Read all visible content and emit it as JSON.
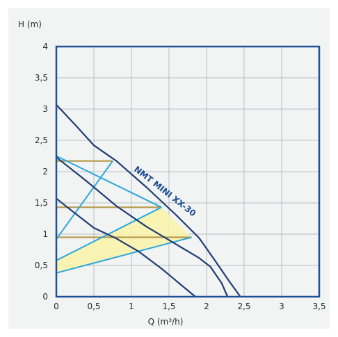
{
  "chart_data": {
    "type": "line",
    "ylabel": "H (m)",
    "xlabel": "Q (m³/h)",
    "xlim": [
      0,
      3.5
    ],
    "ylim": [
      0,
      4
    ],
    "xticks": [
      "0",
      "0,5",
      "1",
      "1,5",
      "2",
      "2,5",
      "3",
      "3,5"
    ],
    "yticks": [
      "0",
      "0,5",
      "1",
      "1,5",
      "2",
      "2,5",
      "3",
      "3,5",
      "4"
    ],
    "grid": true,
    "series_label": "NMT MINI XX-30",
    "pump_curves": [
      {
        "points": [
          [
            0,
            3.07
          ],
          [
            0.25,
            2.75
          ],
          [
            0.5,
            2.42
          ],
          [
            0.8,
            2.17
          ],
          [
            1.2,
            1.75
          ],
          [
            1.6,
            1.3
          ],
          [
            1.9,
            0.94
          ],
          [
            2.1,
            0.6
          ],
          [
            2.3,
            0.25
          ],
          [
            2.45,
            0
          ]
        ]
      },
      {
        "points": [
          [
            0,
            2.23
          ],
          [
            0.4,
            1.85
          ],
          [
            0.8,
            1.45
          ],
          [
            1.2,
            1.12
          ],
          [
            1.55,
            0.87
          ],
          [
            1.9,
            0.62
          ],
          [
            2.05,
            0.48
          ],
          [
            2.2,
            0.22
          ],
          [
            2.28,
            0
          ]
        ]
      },
      {
        "points": [
          [
            0,
            1.57
          ],
          [
            0.2,
            1.38
          ],
          [
            0.5,
            1.1
          ],
          [
            0.8,
            0.93
          ],
          [
            1.1,
            0.72
          ],
          [
            1.4,
            0.45
          ],
          [
            1.65,
            0.2
          ],
          [
            1.85,
            0
          ]
        ]
      }
    ],
    "control_lines": [
      {
        "points": [
          [
            0,
            0.92
          ],
          [
            0.75,
            2.17
          ]
        ]
      },
      {
        "points": [
          [
            0,
            0.58
          ],
          [
            1.4,
            1.43
          ]
        ]
      },
      {
        "points": [
          [
            0,
            0.38
          ],
          [
            1.8,
            0.95
          ]
        ]
      },
      {
        "points": [
          [
            0,
            2.25
          ],
          [
            1.4,
            1.43
          ]
        ]
      }
    ],
    "operating_points": [
      {
        "h": 2.17,
        "q": 0.75
      },
      {
        "h": 1.43,
        "q": 1.4
      },
      {
        "h": 0.95,
        "q": 1.8
      }
    ],
    "shaded_region": [
      [
        0,
        0.58
      ],
      [
        1.4,
        1.43
      ],
      [
        1.8,
        0.95
      ],
      [
        0,
        0.38
      ]
    ],
    "colors": {
      "frame": "#1f4f96",
      "pump_curve": "#1f3c73",
      "control_line": "#2aa7dc",
      "operating_line": "#b59a4a",
      "shade": "#fbf3a8",
      "grid": "#b8bec4",
      "background": "#f2f3f3"
    }
  }
}
